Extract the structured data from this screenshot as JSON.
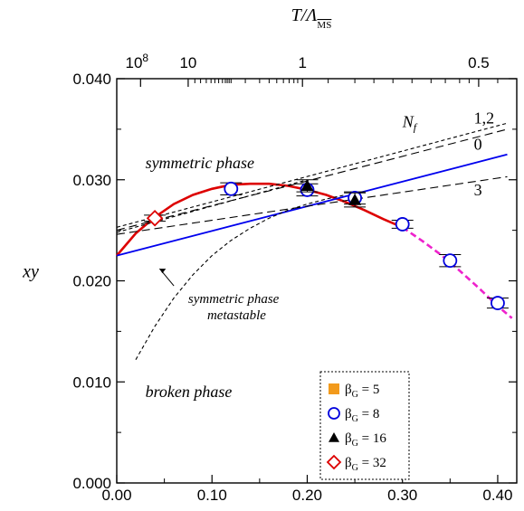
{
  "chart_data": {
    "type": "scatter",
    "xlabel": "",
    "ylabel": "xy",
    "top_axis_label": "T/Λ",
    "top_axis_label_sub": "MS",
    "xlim": [
      0.0,
      0.42
    ],
    "ylim": [
      0.0,
      0.04
    ],
    "x_ticks": [
      "0.00",
      "0.10",
      "0.20",
      "0.30",
      "0.40"
    ],
    "y_ticks": [
      "0.000",
      "0.010",
      "0.020",
      "0.030",
      "0.040"
    ],
    "top_ticks": [
      {
        "label": "10^8",
        "base": "10",
        "exp": "8",
        "x": 0.025
      },
      {
        "label": "10",
        "x": 0.075
      },
      {
        "label": "1",
        "x": 0.195
      },
      {
        "label": "0.5",
        "x": 0.38
      }
    ],
    "top_minor_ticks": [
      0.082,
      0.088,
      0.094,
      0.099,
      0.103,
      0.107,
      0.111,
      0.114,
      0.116,
      0.118,
      0.12,
      0.135,
      0.15,
      0.16,
      0.168,
      0.175,
      0.181,
      0.186,
      0.19,
      0.222,
      0.25,
      0.27,
      0.29,
      0.31,
      0.33,
      0.345,
      0.36,
      0.37,
      0.4
    ],
    "series": [
      {
        "name": "β_G = 5",
        "marker": "square",
        "color": "#f29a1c",
        "points": []
      },
      {
        "name": "β_G = 8",
        "marker": "circle",
        "color": "#0000dd",
        "points": [
          {
            "x": 0.12,
            "y": 0.0291,
            "err": 0.0006
          },
          {
            "x": 0.2,
            "y": 0.029,
            "err": 0.0006
          },
          {
            "x": 0.25,
            "y": 0.0282,
            "err": 0.0006
          },
          {
            "x": 0.3,
            "y": 0.0256,
            "err": 0.0004
          },
          {
            "x": 0.35,
            "y": 0.022,
            "err": 0.0006
          },
          {
            "x": 0.4,
            "y": 0.0178,
            "err": 0.0005
          }
        ]
      },
      {
        "name": "β_G = 16",
        "marker": "triangle",
        "color": "#000000",
        "points": [
          {
            "x": 0.2,
            "y": 0.0294,
            "err": 0.0006
          },
          {
            "x": 0.25,
            "y": 0.028,
            "err": 0.0007
          }
        ]
      },
      {
        "name": "β_G = 32",
        "marker": "diamond",
        "color": "#dd0000",
        "points": [
          {
            "x": 0.04,
            "y": 0.0262,
            "err": 0.0003
          }
        ]
      }
    ],
    "curves": [
      {
        "id": "fit-solid",
        "style": "solid",
        "color": "#dd0000",
        "x": [
          0.0,
          0.02,
          0.04,
          0.06,
          0.08,
          0.1,
          0.12,
          0.14,
          0.16,
          0.18,
          0.2,
          0.22,
          0.24,
          0.26,
          0.28,
          0.3
        ],
        "y": [
          0.0225,
          0.0247,
          0.0263,
          0.0276,
          0.0285,
          0.0291,
          0.0295,
          0.0296,
          0.0296,
          0.0294,
          0.029,
          0.0285,
          0.0278,
          0.027,
          0.0261,
          0.0253
        ]
      },
      {
        "id": "fit-dashed",
        "style": "dashed",
        "color": "#ee22cc",
        "x": [
          0.3,
          0.32,
          0.34,
          0.36,
          0.38,
          0.4,
          0.415
        ],
        "y": [
          0.0253,
          0.024,
          0.0226,
          0.021,
          0.0193,
          0.0175,
          0.0163
        ]
      },
      {
        "id": "nf0",
        "style": "solid",
        "color": "#0000ee",
        "x": [
          0.0,
          0.41
        ],
        "y": [
          0.0225,
          0.0325
        ]
      },
      {
        "id": "nf12-a",
        "style": "longdash",
        "color": "#000000",
        "x": [
          0.0,
          0.41
        ],
        "y": [
          0.025,
          0.035
        ]
      },
      {
        "id": "nf12-b",
        "style": "shortdash",
        "color": "#000000",
        "x": [
          0.0,
          0.41
        ],
        "y": [
          0.0253,
          0.0356
        ]
      },
      {
        "id": "nf3",
        "style": "longdash",
        "color": "#000000",
        "x": [
          0.0,
          0.41
        ],
        "y": [
          0.0246,
          0.0303
        ]
      },
      {
        "id": "extra-short-1",
        "style": "shortdash",
        "color": "#000000",
        "x": [
          0.0,
          0.2
        ],
        "y": [
          0.0248,
          0.03
        ]
      },
      {
        "id": "metastable",
        "style": "shortdash",
        "color": "#000000",
        "x": [
          0.02,
          0.04,
          0.06,
          0.08,
          0.1,
          0.12,
          0.14,
          0.16,
          0.18,
          0.2,
          0.22,
          0.24
        ],
        "y": [
          0.0122,
          0.0155,
          0.0183,
          0.0206,
          0.0225,
          0.024,
          0.0252,
          0.0262,
          0.027,
          0.0276,
          0.0281,
          0.0285
        ]
      }
    ],
    "annotations": {
      "symmetric": "symmetric phase",
      "metastable_1": "symmetric phase",
      "metastable_2": "metastable",
      "broken": "broken phase",
      "nf_symbol": "N",
      "nf_sub": "f",
      "nf_12": "1,2",
      "nf_0": "0",
      "nf_3": "3"
    },
    "legend": {
      "position": "bottom-center",
      "items": [
        {
          "base": "β",
          "sub": "G",
          "rest": " = 5"
        },
        {
          "base": "β",
          "sub": "G",
          "rest": " = 8"
        },
        {
          "base": "β",
          "sub": "G",
          "rest": " = 16"
        },
        {
          "base": "β",
          "sub": "G",
          "rest": " = 32"
        }
      ]
    }
  }
}
